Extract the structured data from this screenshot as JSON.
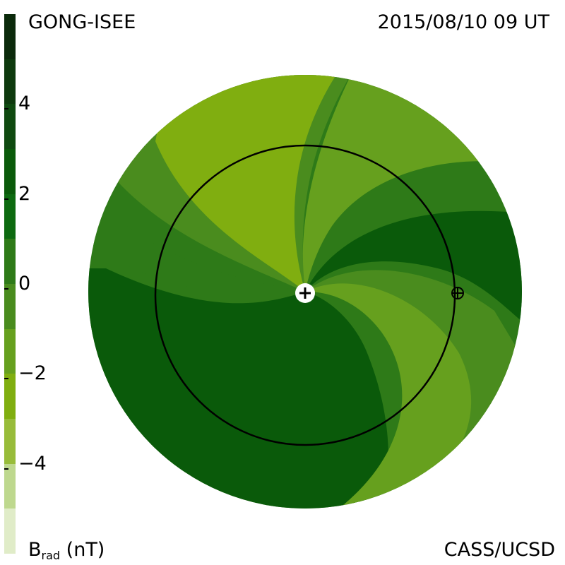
{
  "header": {
    "source_label": "GONG-ISEE",
    "datetime_label": "2015/08/10 09 UT"
  },
  "footer": {
    "credit": "CASS/UCSD"
  },
  "colorbar": {
    "label_main": "B",
    "label_sub": "rad",
    "label_unit": "(nT)",
    "ticks": [
      {
        "value": 4,
        "label": "4"
      },
      {
        "value": 2,
        "label": "2"
      },
      {
        "value": 0,
        "label": "0"
      },
      {
        "value": -2,
        "label": "−2"
      },
      {
        "value": -4,
        "label": "−4"
      }
    ],
    "range": [
      -6,
      6
    ],
    "bands": [
      {
        "from": 5,
        "to": 6,
        "color": "#0b2a0b"
      },
      {
        "from": 4,
        "to": 5,
        "color": "#0e3a0e"
      },
      {
        "from": 3,
        "to": 4,
        "color": "#0f4a10"
      },
      {
        "from": 2,
        "to": 3,
        "color": "#0a5a0a"
      },
      {
        "from": 1,
        "to": 2,
        "color": "#0d6a10"
      },
      {
        "from": 0,
        "to": 1,
        "color": "#2e7a18"
      },
      {
        "from": -1,
        "to": 0,
        "color": "#4a8c1e"
      },
      {
        "from": -2,
        "to": -1,
        "color": "#66a01e"
      },
      {
        "from": -3,
        "to": -2,
        "color": "#80ae10"
      },
      {
        "from": -4,
        "to": -3,
        "color": "#98bc3a"
      },
      {
        "from": -5,
        "to": -4,
        "color": "#bed88e"
      },
      {
        "from": -6,
        "to": -5,
        "color": "#e0ecc8"
      }
    ]
  },
  "colors": {
    "outer_disk": "#2e7a18",
    "sector_pos": "#0a5a0a",
    "sector_pos_mid": "#2e7a18",
    "sector_neg_mid": "#4a8c1e",
    "sector_neg": "#66a01e",
    "sector_neg_core": "#80ae10",
    "earth_orbit": "#000000",
    "sun_marker": "#ffffff"
  }
}
